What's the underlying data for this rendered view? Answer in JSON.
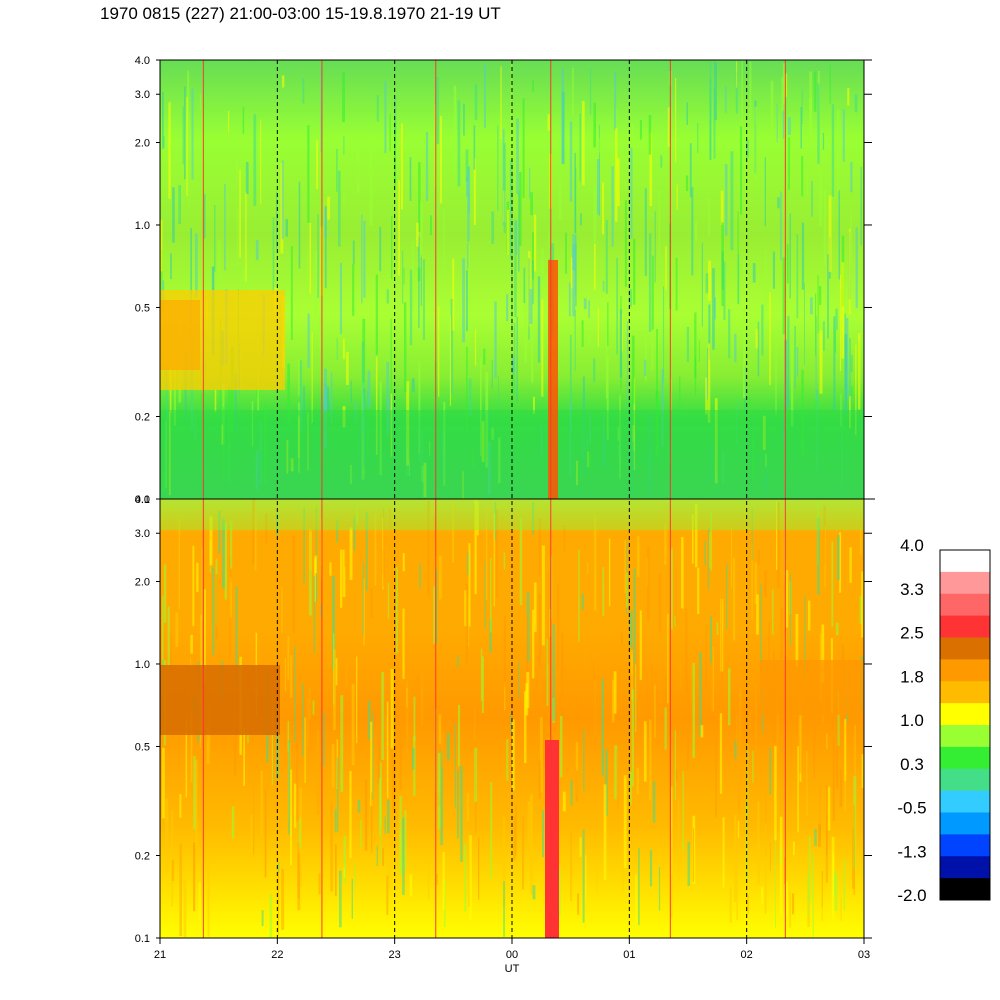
{
  "header": {
    "title": "1970 0815 (227) 21:00-03:00 15-19.8.1970  21-19 UT"
  },
  "chart_data": {
    "type": "heatmap",
    "title": "1970 0815 (227) 21:00-03:00 15-19.8.1970  21-19 UT",
    "xlabel": "UT",
    "x_tick_labels": [
      "21",
      "22",
      "23",
      "00",
      "01",
      "02",
      "03"
    ],
    "x_hours_range": [
      21,
      27
    ],
    "y_scale": "log",
    "y_tick_labels": [
      "0.1",
      "0.2",
      "0.5",
      "1.0",
      "2.0",
      "3.0",
      "4.0"
    ],
    "y_tick_values": [
      0.1,
      0.2,
      0.5,
      1.0,
      2.0,
      3.0,
      4.0
    ],
    "ylim": [
      0.1,
      4.0
    ],
    "dashed_hour_lines": [
      "22",
      "23",
      "00",
      "01",
      "02"
    ],
    "panels": [
      {
        "panel": "upper",
        "dominant_level": "0.3 to 1.0",
        "features": [
          "low-frequency band near 0.1-0.2 at level 0.3",
          "yellow/orange patch 0.3-0.6 during 21-22 UT",
          "narrow red spike near 00:20 UT"
        ]
      },
      {
        "panel": "lower",
        "dominant_level": "1.0 to 1.8",
        "features": [
          "dark orange band 0.6-0.9 during 21-22 UT",
          "red column near 00:20 UT from 0.1 to 0.6",
          "orange patch 0.7-0.9 during 02:20-03 UT"
        ]
      }
    ],
    "colorbar": {
      "labels": [
        "4.0",
        "3.3",
        "2.5",
        "1.8",
        "1.0",
        "0.3",
        "-0.5",
        "-1.3",
        "-2.0"
      ],
      "colors": [
        "#ffffff",
        "#ff9999",
        "#ff6666",
        "#ff3333",
        "#d97000",
        "#ff9900",
        "#ffbb00",
        "#ffff00",
        "#99ff33",
        "#33ee33",
        "#44dd88",
        "#33ccff",
        "#0099ff",
        "#0044ff",
        "#0011aa",
        "#000000"
      ]
    }
  }
}
